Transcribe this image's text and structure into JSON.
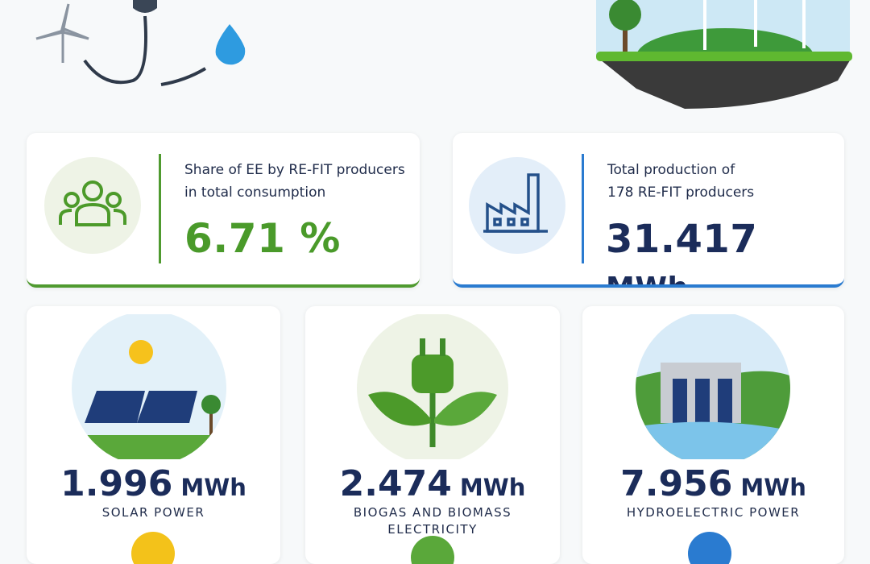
{
  "summary": [
    {
      "label_lines": [
        "Share of EE by RE-FIT producers",
        "in total consumption"
      ],
      "number": "6.71",
      "unit": "%"
    },
    {
      "label_lines": [
        "Total production of",
        "178 RE-FIT producers"
      ],
      "number": "31.417",
      "unit": "MWh"
    }
  ],
  "sources": [
    {
      "number": "1.996",
      "unit": "MWh",
      "label": "SOLAR POWER"
    },
    {
      "number": "2.474",
      "unit": "MWh",
      "label": "BIOGAS AND BIOMASS ELECTRICITY"
    },
    {
      "number": "7.956",
      "unit": "MWh",
      "label": "HYDROELECTRIC POWER"
    }
  ]
}
